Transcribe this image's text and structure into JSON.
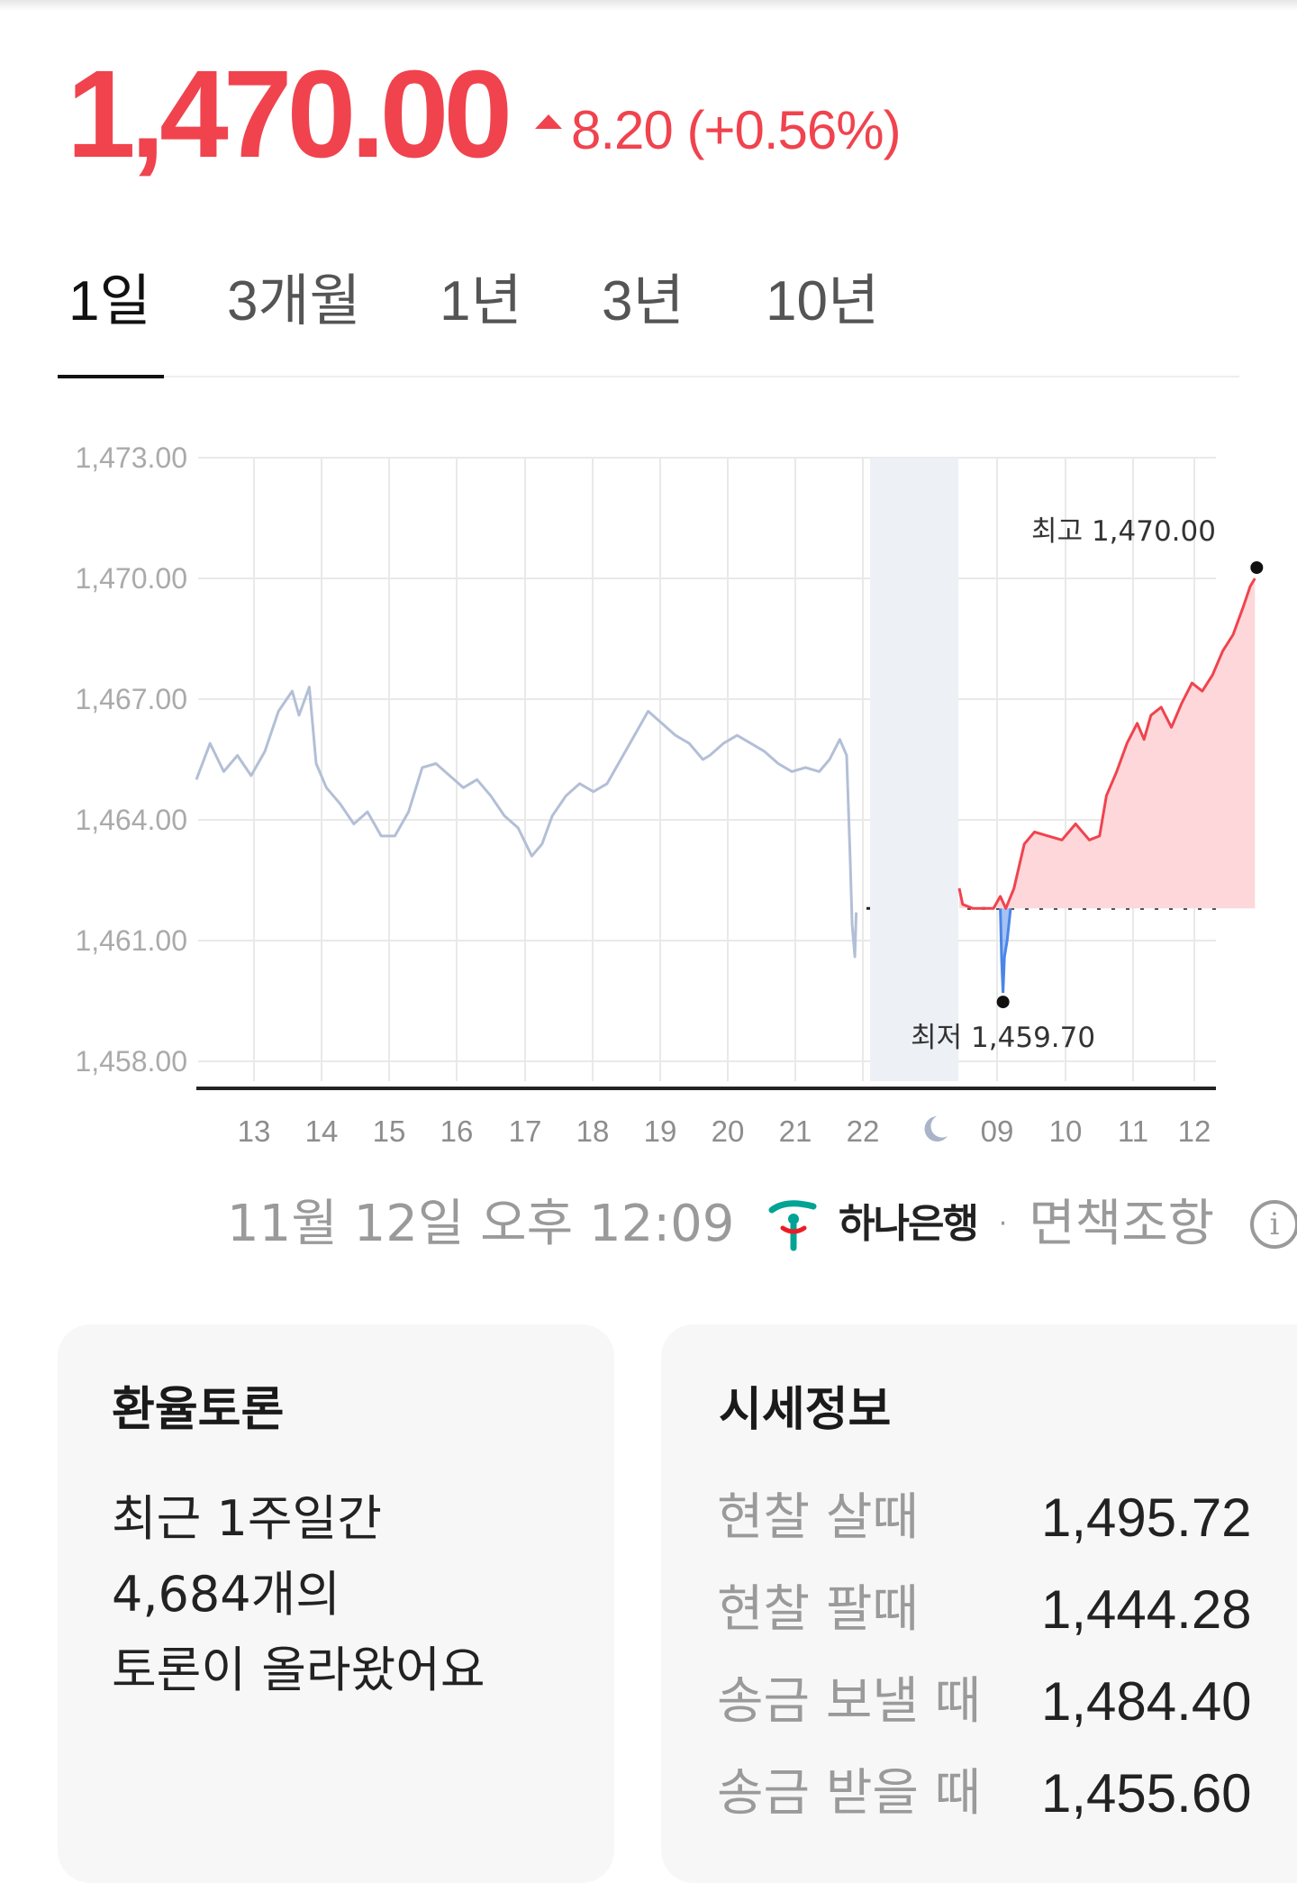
{
  "price": {
    "current": "1,470.00",
    "change": "8.20 (+0.56%)",
    "direction": "up",
    "color_up": "#f0434e"
  },
  "tabs": [
    {
      "label": "1일",
      "active": true
    },
    {
      "label": "3개월",
      "active": false
    },
    {
      "label": "1년",
      "active": false
    },
    {
      "label": "3년",
      "active": false
    },
    {
      "label": "10년",
      "active": false
    }
  ],
  "chart_data": {
    "type": "line",
    "title": "",
    "ylim": [
      1458.0,
      1473.0
    ],
    "y_ticks": [
      "1,473.00",
      "1,470.00",
      "1,467.00",
      "1,464.00",
      "1,461.00",
      "1,458.00"
    ],
    "y_tick_values": [
      1473,
      1470,
      1467,
      1464,
      1461,
      1458
    ],
    "x_ticks": [
      "13",
      "14",
      "15",
      "16",
      "17",
      "18",
      "19",
      "20",
      "21",
      "22",
      "09",
      "10",
      "11",
      "12"
    ],
    "night_marker": "moon-icon",
    "grid": true,
    "reference_line": 1461.8,
    "colors": {
      "history": "#b3bfd6",
      "rise": "#f0434e",
      "fall": "#4a86e8",
      "fill_rise": "#fdd7d9",
      "night_band": "#edf0f5"
    },
    "high_label": "최고 1,470.00",
    "high_value": 1470.0,
    "low_label": "최저 1,459.70",
    "low_value": 1459.7,
    "series": [
      {
        "segment": "previous-session",
        "points": [
          [
            12.5,
            1465.0
          ],
          [
            12.7,
            1465.9
          ],
          [
            12.9,
            1465.2
          ],
          [
            13.1,
            1465.6
          ],
          [
            13.3,
            1465.1
          ],
          [
            13.5,
            1465.7
          ],
          [
            13.7,
            1466.7
          ],
          [
            13.9,
            1467.2
          ],
          [
            14.0,
            1466.6
          ],
          [
            14.15,
            1467.3
          ],
          [
            14.25,
            1465.4
          ],
          [
            14.4,
            1464.8
          ],
          [
            14.6,
            1464.4
          ],
          [
            14.8,
            1463.9
          ],
          [
            15.0,
            1464.2
          ],
          [
            15.2,
            1463.6
          ],
          [
            15.4,
            1463.6
          ],
          [
            15.6,
            1464.2
          ],
          [
            15.8,
            1465.3
          ],
          [
            16.0,
            1465.4
          ],
          [
            16.2,
            1465.1
          ],
          [
            16.4,
            1464.8
          ],
          [
            16.6,
            1465.0
          ],
          [
            16.8,
            1464.6
          ],
          [
            17.0,
            1464.1
          ],
          [
            17.2,
            1463.8
          ],
          [
            17.4,
            1463.1
          ],
          [
            17.55,
            1463.4
          ],
          [
            17.7,
            1464.1
          ],
          [
            17.9,
            1464.6
          ],
          [
            18.1,
            1464.9
          ],
          [
            18.3,
            1464.7
          ],
          [
            18.5,
            1464.9
          ],
          [
            18.7,
            1465.5
          ],
          [
            18.9,
            1466.1
          ],
          [
            19.1,
            1466.7
          ],
          [
            19.3,
            1466.4
          ],
          [
            19.5,
            1466.1
          ],
          [
            19.7,
            1465.9
          ],
          [
            19.9,
            1465.5
          ],
          [
            20.0,
            1465.6
          ],
          [
            20.2,
            1465.9
          ],
          [
            20.4,
            1466.1
          ],
          [
            20.6,
            1465.9
          ],
          [
            20.8,
            1465.7
          ],
          [
            21.0,
            1465.4
          ],
          [
            21.2,
            1465.2
          ],
          [
            21.4,
            1465.3
          ],
          [
            21.6,
            1465.2
          ],
          [
            21.75,
            1465.5
          ],
          [
            21.9,
            1466.0
          ],
          [
            22.0,
            1465.6
          ],
          [
            22.05,
            1463.1
          ],
          [
            22.08,
            1461.4
          ],
          [
            22.12,
            1460.6
          ],
          [
            22.14,
            1461.7
          ]
        ]
      },
      {
        "segment": "today-rise",
        "points": [
          [
            23.4,
            1462.3
          ],
          [
            23.45,
            1461.9
          ],
          [
            23.6,
            1461.8
          ],
          [
            23.9,
            1461.8
          ],
          [
            24.0,
            1462.1
          ],
          [
            24.08,
            1461.8
          ],
          [
            24.2,
            1462.3
          ],
          [
            24.35,
            1463.4
          ],
          [
            24.5,
            1463.7
          ],
          [
            24.7,
            1463.6
          ],
          [
            24.9,
            1463.5
          ],
          [
            25.1,
            1463.9
          ],
          [
            25.3,
            1463.5
          ],
          [
            25.45,
            1463.6
          ],
          [
            25.55,
            1464.6
          ],
          [
            25.7,
            1465.2
          ],
          [
            25.85,
            1465.9
          ],
          [
            26.0,
            1466.4
          ],
          [
            26.1,
            1466.0
          ],
          [
            26.2,
            1466.6
          ],
          [
            26.35,
            1466.8
          ],
          [
            26.5,
            1466.3
          ],
          [
            26.65,
            1466.9
          ],
          [
            26.8,
            1467.4
          ],
          [
            26.95,
            1467.2
          ],
          [
            27.1,
            1467.6
          ],
          [
            27.25,
            1468.2
          ],
          [
            27.4,
            1468.6
          ],
          [
            27.55,
            1469.3
          ],
          [
            27.65,
            1469.8
          ],
          [
            27.72,
            1470.0
          ]
        ]
      },
      {
        "segment": "today-fall",
        "points": [
          [
            24.0,
            1461.8
          ],
          [
            24.02,
            1460.5
          ],
          [
            24.04,
            1459.7
          ],
          [
            24.06,
            1460.6
          ],
          [
            24.1,
            1461.0
          ],
          [
            24.15,
            1461.8
          ]
        ]
      }
    ]
  },
  "footer": {
    "datetime": "11월 12일 오후 12:09",
    "bank": "하나은행",
    "separator": "·",
    "disclaimer": "면책조항",
    "info_icon": "i"
  },
  "discussion_card": {
    "title": "환율토론",
    "lines": [
      "최근 1주일간",
      "4,684개의",
      "토론이 올라왔어요"
    ]
  },
  "market_card": {
    "title": "시세정보",
    "rows": [
      {
        "label": "현찰 살때",
        "value": "1,495.72"
      },
      {
        "label": "현찰 팔때",
        "value": "1,444.28"
      },
      {
        "label": "송금 보낼 때",
        "value": "1,484.40"
      },
      {
        "label": "송금 받을 때",
        "value": "1,455.60"
      }
    ]
  }
}
